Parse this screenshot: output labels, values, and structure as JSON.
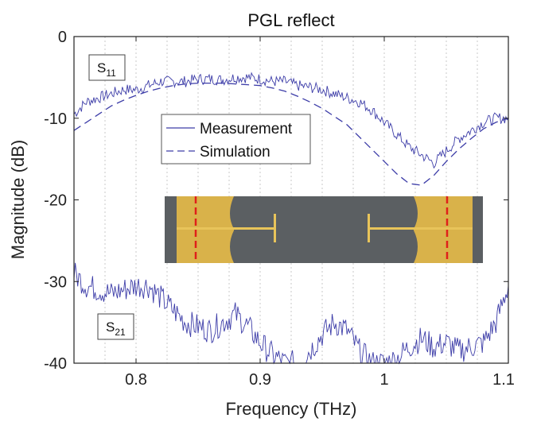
{
  "chart_data": {
    "type": "line",
    "title": "PGL reflect",
    "xlabel": "Frequency (THz)",
    "ylabel": "Magnitude (dB)",
    "xlim": [
      0.75,
      1.1
    ],
    "ylim": [
      -40,
      0
    ],
    "xticks": [
      0.8,
      0.9,
      1.0,
      1.1
    ],
    "xtick_labels": [
      "0.8",
      "0.9",
      "1",
      "1.1"
    ],
    "yticks": [
      0,
      -10,
      -20,
      -30,
      -40
    ],
    "ytick_labels": [
      "0",
      "-10",
      "-20",
      "-30",
      "-40"
    ],
    "grid": "vertical dotted",
    "legend": {
      "position": "center-left",
      "entries": [
        "Measurement",
        "Simulation"
      ]
    },
    "annotations": [
      {
        "main": "S",
        "sub": "11"
      },
      {
        "main": "S",
        "sub": "21"
      }
    ],
    "series": [
      {
        "name": "Measurement",
        "group": "S11",
        "style": "solid",
        "x": [
          0.75,
          0.76,
          0.77,
          0.78,
          0.79,
          0.8,
          0.81,
          0.82,
          0.83,
          0.84,
          0.85,
          0.86,
          0.87,
          0.88,
          0.89,
          0.9,
          0.91,
          0.92,
          0.93,
          0.94,
          0.95,
          0.96,
          0.97,
          0.98,
          0.99,
          1.0,
          1.01,
          1.02,
          1.03,
          1.04,
          1.05,
          1.06,
          1.07,
          1.08,
          1.09,
          1.1
        ],
        "values": [
          -9.5,
          -8.0,
          -7.5,
          -7.0,
          -6.5,
          -6.5,
          -6.0,
          -5.5,
          -5.5,
          -5.5,
          -5.2,
          -5.2,
          -5.3,
          -5.0,
          -5.0,
          -5.2,
          -5.5,
          -5.5,
          -6.0,
          -6.2,
          -6.5,
          -7.0,
          -7.5,
          -8.0,
          -9.0,
          -10.5,
          -12.0,
          -13.5,
          -14.5,
          -15.5,
          -14.0,
          -12.5,
          -11.5,
          -10.5,
          -10.0,
          -10.0
        ]
      },
      {
        "name": "Simulation",
        "group": "S11",
        "style": "dashed",
        "x": [
          0.75,
          0.76,
          0.77,
          0.78,
          0.79,
          0.8,
          0.81,
          0.82,
          0.83,
          0.84,
          0.85,
          0.86,
          0.87,
          0.88,
          0.89,
          0.9,
          0.91,
          0.92,
          0.93,
          0.94,
          0.95,
          0.96,
          0.97,
          0.98,
          0.99,
          1.0,
          1.01,
          1.02,
          1.03,
          1.04,
          1.05,
          1.06,
          1.07,
          1.08,
          1.09,
          1.1
        ],
        "values": [
          -11.5,
          -10.5,
          -9.5,
          -8.5,
          -7.8,
          -7.2,
          -6.7,
          -6.3,
          -6.0,
          -5.8,
          -5.7,
          -5.7,
          -5.7,
          -5.8,
          -5.9,
          -6.0,
          -6.3,
          -6.7,
          -7.3,
          -8.0,
          -8.8,
          -9.8,
          -10.8,
          -12.3,
          -13.8,
          -15.3,
          -16.8,
          -18.0,
          -18.2,
          -17.0,
          -15.3,
          -13.8,
          -12.5,
          -11.3,
          -10.5,
          -10.0
        ]
      },
      {
        "name": "Measurement",
        "group": "S21",
        "style": "solid",
        "x": [
          0.75,
          0.76,
          0.77,
          0.78,
          0.79,
          0.8,
          0.81,
          0.82,
          0.83,
          0.84,
          0.85,
          0.86,
          0.87,
          0.88,
          0.89,
          0.9,
          0.91,
          0.92,
          0.93,
          0.94,
          0.95,
          0.96,
          0.97,
          0.98,
          0.99,
          1.0,
          1.01,
          1.02,
          1.03,
          1.04,
          1.05,
          1.06,
          1.07,
          1.08,
          1.09,
          1.1
        ],
        "values": [
          -29.0,
          -30.5,
          -31.0,
          -31.5,
          -31.0,
          -30.5,
          -30.5,
          -32.0,
          -33.5,
          -35.0,
          -35.5,
          -36.0,
          -35.0,
          -34.0,
          -35.5,
          -37.5,
          -39.0,
          -40.0,
          -40.0,
          -38.5,
          -36.5,
          -35.0,
          -36.0,
          -38.5,
          -40.0,
          -40.0,
          -39.5,
          -38.0,
          -37.0,
          -38.0,
          -37.5,
          -38.5,
          -38.0,
          -37.5,
          -35.0,
          -30.5
        ]
      }
    ]
  },
  "inset": {
    "description": "microscope image of PGL reflect standard",
    "background": "#5b5f62",
    "pad_color": "#d9b24a",
    "line_color": "#e8c45a",
    "marker_color": "#e0201a"
  },
  "colors": {
    "series": "#3d3da8",
    "axis": "#222222",
    "grid": "#bdbdbd"
  }
}
